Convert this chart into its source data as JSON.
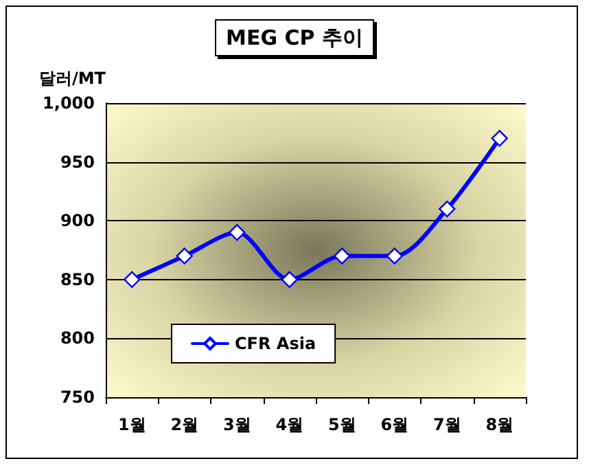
{
  "chart_data": {
    "type": "line",
    "title": "MEG CP 추이",
    "ylabel": "달러/MT",
    "categories": [
      "1월",
      "2월",
      "3월",
      "4월",
      "5월",
      "6월",
      "7월",
      "8월"
    ],
    "series": [
      {
        "name": "CFR Asia",
        "color": "#0000ff",
        "values": [
          850,
          870,
          890,
          850,
          870,
          870,
          910,
          970
        ]
      }
    ],
    "ylim": [
      750,
      1000
    ],
    "yticks": [
      750,
      800,
      850,
      900,
      950,
      {
        "value": 1000,
        "label": "1,000"
      }
    ],
    "grid": "y",
    "legend": "bottom left",
    "marker": "diamond",
    "line_style": "solid"
  }
}
